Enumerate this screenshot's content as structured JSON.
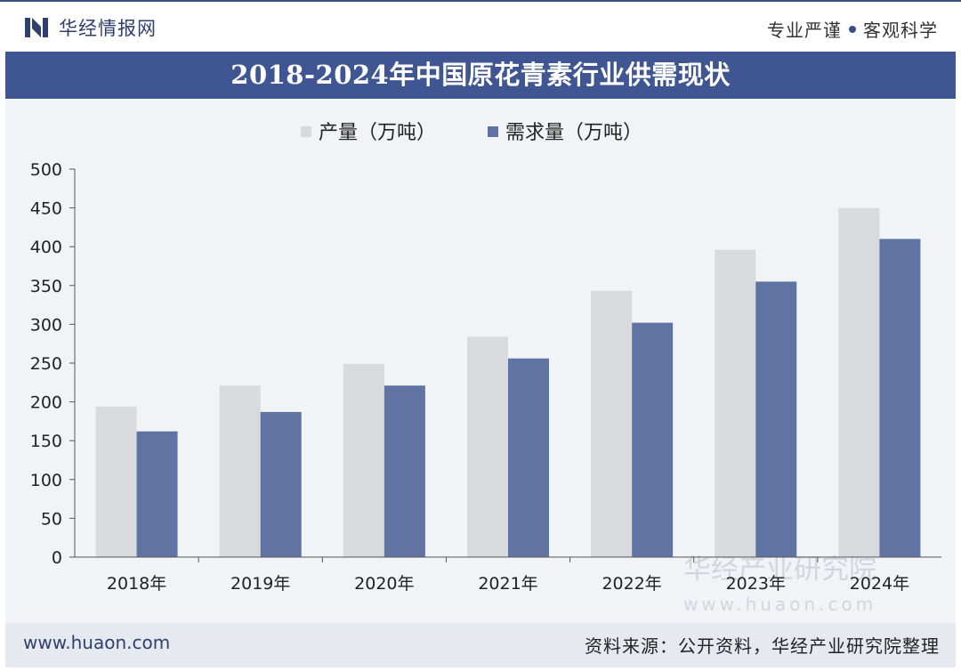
{
  "header": {
    "brand": "华经情报网",
    "tagline_left": "专业严谨",
    "tagline_right": "客观科学"
  },
  "title": "2018-2024年中国原花青素行业供需现状",
  "footer": {
    "url": "www.huaon.com",
    "source": "资料来源：公开资料，华经产业研究院整理"
  },
  "watermark": {
    "name": "华经产业研究院",
    "url": "www.huaon.com"
  },
  "colors": {
    "production": "#d9dade",
    "demand": "#5f74a3",
    "title_bg": "#3f5693"
  },
  "chart_data": {
    "type": "bar",
    "categories": [
      "2018年",
      "2019年",
      "2020年",
      "2021年",
      "2022年",
      "2023年",
      "2024年"
    ],
    "series": [
      {
        "name": "产量（万吨）",
        "values": [
          194,
          221,
          249,
          284,
          343,
          396,
          450
        ]
      },
      {
        "name": "需求量（万吨）",
        "values": [
          162,
          187,
          221,
          256,
          302,
          355,
          410
        ]
      }
    ],
    "ylim": [
      0,
      500
    ],
    "yticks": [
      0,
      50,
      100,
      150,
      200,
      250,
      300,
      350,
      400,
      450,
      500
    ],
    "legend_position": "top",
    "grid": false
  }
}
